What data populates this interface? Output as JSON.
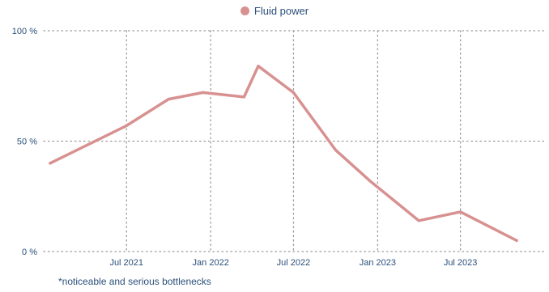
{
  "colors": {
    "series": "#d89191",
    "grid": "#9a9a9a",
    "text": "#2a4f7a"
  },
  "footnote": "*noticeable and serious bottlenecks",
  "chart_data": {
    "type": "line",
    "title": "",
    "xlabel": "",
    "ylabel": "",
    "xlim": [
      "2021-01-01",
      "2023-12-31"
    ],
    "ylim": [
      0,
      100
    ],
    "grid": true,
    "legend_placement": "top-center",
    "x_ticks": [
      {
        "date": "2021-07-01",
        "label": "Jul 2021"
      },
      {
        "date": "2022-01-01",
        "label": "Jan 2022"
      },
      {
        "date": "2022-07-01",
        "label": "Jul 2022"
      },
      {
        "date": "2023-01-01",
        "label": "Jan 2023"
      },
      {
        "date": "2023-07-01",
        "label": "Jul 2023"
      }
    ],
    "y_ticks": [
      {
        "value": 0,
        "label": "0 %"
      },
      {
        "value": 50,
        "label": "50 %"
      },
      {
        "value": 100,
        "label": "100 %"
      }
    ],
    "series": [
      {
        "name": "Fluid power",
        "color": "#d89191",
        "points": [
          {
            "x": "2021-01-15",
            "y": 40
          },
          {
            "x": "2021-07-01",
            "y": 57
          },
          {
            "x": "2021-10-01",
            "y": 69
          },
          {
            "x": "2021-12-15",
            "y": 72
          },
          {
            "x": "2022-03-15",
            "y": 70
          },
          {
            "x": "2022-04-15",
            "y": 84
          },
          {
            "x": "2022-07-01",
            "y": 72
          },
          {
            "x": "2022-10-01",
            "y": 46
          },
          {
            "x": "2022-12-15",
            "y": 32
          },
          {
            "x": "2023-04-01",
            "y": 14
          },
          {
            "x": "2023-07-01",
            "y": 18
          },
          {
            "x": "2023-11-01",
            "y": 5
          }
        ]
      }
    ]
  }
}
